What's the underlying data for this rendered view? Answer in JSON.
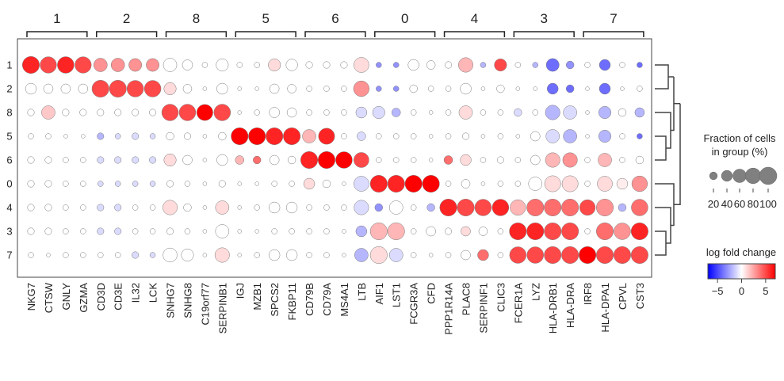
{
  "chart_data": {
    "type": "dotplot",
    "title": "",
    "xlabel": "",
    "ylabel": "",
    "rows": [
      "1",
      "2",
      "8",
      "5",
      "6",
      "0",
      "4",
      "3",
      "7"
    ],
    "genes": [
      "NKG7",
      "CTSW",
      "GNLY",
      "GZMA",
      "CD3D",
      "CD3E",
      "IL32",
      "LCK",
      "SNHG7",
      "SNHG8",
      "C19orf77",
      "SERPINB1",
      "IGJ",
      "MZB1",
      "SPCS2",
      "FKBP11",
      "CD79B",
      "CD79A",
      "MS4A1",
      "LTB",
      "AIF1",
      "LST1",
      "FCGR3A",
      "CFD",
      "PPP1R14A",
      "PLAC8",
      "SERPINF1",
      "CLIC3",
      "FCER1A",
      "LYZ",
      "HLA-DRB1",
      "HLA-DRA",
      "IRF8",
      "HLA-DPA1",
      "CPVL",
      "CST3"
    ],
    "groups": [
      {
        "label": "1",
        "start": 0,
        "end": 3
      },
      {
        "label": "2",
        "start": 4,
        "end": 7
      },
      {
        "label": "8",
        "start": 8,
        "end": 11
      },
      {
        "label": "5",
        "start": 12,
        "end": 15
      },
      {
        "label": "6",
        "start": 16,
        "end": 19
      },
      {
        "label": "0",
        "start": 20,
        "end": 23
      },
      {
        "label": "4",
        "start": 24,
        "end": 27
      },
      {
        "label": "3",
        "start": 28,
        "end": 31
      },
      {
        "label": "7",
        "start": 32,
        "end": 35
      }
    ],
    "fraction_pct": [
      [
        95,
        88,
        90,
        88,
        60,
        60,
        55,
        55,
        60,
        35,
        10,
        50,
        10,
        10,
        50,
        45,
        15,
        15,
        15,
        75,
        10,
        10,
        40,
        25,
        15,
        70,
        10,
        50,
        10,
        10,
        55,
        20,
        10,
        40,
        10,
        10
      ],
      [
        40,
        30,
        30,
        30,
        95,
        95,
        90,
        90,
        50,
        25,
        5,
        40,
        5,
        5,
        30,
        25,
        10,
        10,
        10,
        80,
        10,
        10,
        20,
        10,
        10,
        40,
        5,
        20,
        5,
        5,
        40,
        20,
        5,
        40,
        5,
        10
      ],
      [
        15,
        60,
        15,
        15,
        15,
        15,
        15,
        15,
        90,
        90,
        85,
        90,
        5,
        10,
        35,
        30,
        10,
        10,
        10,
        40,
        50,
        25,
        10,
        5,
        10,
        60,
        10,
        10,
        20,
        10,
        70,
        60,
        5,
        50,
        20,
        30
      ],
      [
        10,
        10,
        5,
        5,
        15,
        10,
        15,
        10,
        20,
        15,
        5,
        20,
        95,
        95,
        95,
        95,
        60,
        85,
        10,
        25,
        10,
        10,
        10,
        5,
        10,
        15,
        5,
        10,
        5,
        30,
        60,
        60,
        5,
        50,
        10,
        10
      ],
      [
        15,
        15,
        10,
        10,
        15,
        15,
        15,
        15,
        50,
        30,
        5,
        40,
        25,
        20,
        30,
        20,
        95,
        95,
        90,
        75,
        10,
        10,
        10,
        5,
        25,
        40,
        10,
        15,
        10,
        30,
        70,
        70,
        10,
        60,
        10,
        20
      ],
      [
        15,
        15,
        10,
        10,
        10,
        10,
        10,
        10,
        15,
        10,
        5,
        15,
        5,
        5,
        10,
        10,
        40,
        20,
        5,
        75,
        95,
        95,
        95,
        95,
        10,
        25,
        5,
        10,
        10,
        60,
        85,
        85,
        10,
        75,
        40,
        80
      ],
      [
        15,
        15,
        10,
        10,
        15,
        15,
        10,
        10,
        70,
        20,
        5,
        60,
        5,
        10,
        40,
        40,
        10,
        10,
        10,
        70,
        20,
        60,
        10,
        20,
        95,
        95,
        90,
        90,
        80,
        95,
        95,
        95,
        80,
        95,
        20,
        90
      ],
      [
        15,
        15,
        10,
        10,
        15,
        15,
        10,
        10,
        15,
        10,
        5,
        60,
        5,
        5,
        10,
        10,
        10,
        10,
        5,
        40,
        95,
        95,
        10,
        30,
        15,
        30,
        25,
        10,
        95,
        95,
        95,
        95,
        10,
        95,
        90,
        95
      ],
      [
        10,
        5,
        10,
        10,
        10,
        10,
        15,
        10,
        65,
        50,
        5,
        70,
        5,
        10,
        40,
        40,
        10,
        10,
        5,
        60,
        95,
        60,
        10,
        5,
        10,
        30,
        40,
        10,
        90,
        90,
        95,
        95,
        95,
        95,
        95,
        95
      ]
    ],
    "log_fold_change": [
      [
        6,
        5,
        6,
        5,
        3,
        3,
        3,
        3,
        0,
        0,
        0,
        0,
        0,
        0,
        1,
        0,
        0,
        0,
        0,
        1,
        -3,
        -3,
        0,
        0,
        0,
        2,
        -2,
        5,
        0,
        -2,
        -4,
        -3,
        0,
        -4,
        0,
        -4
      ],
      [
        0,
        0,
        0,
        0,
        5,
        5,
        5,
        5,
        1,
        0,
        0,
        0,
        0,
        0,
        0,
        0,
        0,
        0,
        0,
        3,
        -3,
        -3,
        0,
        0,
        0,
        0,
        0,
        0,
        0,
        0,
        -4,
        -4,
        0,
        -4,
        0,
        0
      ],
      [
        0,
        1.5,
        0,
        0,
        0,
        0,
        0,
        0,
        5,
        5,
        7,
        5,
        0,
        0,
        0,
        0,
        0,
        0,
        0,
        -1,
        -1,
        -2,
        0,
        0,
        0,
        1,
        0,
        0,
        -1,
        0,
        -2,
        -1,
        0,
        -2,
        0,
        -2
      ],
      [
        0,
        0,
        0,
        0,
        -2,
        -1,
        -1,
        -1,
        0,
        0,
        0,
        0,
        7,
        7,
        6,
        6,
        2,
        6,
        0,
        -1,
        0,
        0,
        0,
        0,
        0,
        0,
        0,
        0,
        0,
        0,
        -1,
        -2,
        0,
        -2,
        0,
        -4
      ],
      [
        0,
        0,
        0,
        0,
        -1,
        -1,
        -1,
        -1,
        1,
        0,
        0,
        0,
        2,
        4,
        0,
        0,
        6,
        7,
        7,
        5,
        0,
        0,
        0,
        0,
        4,
        1,
        0,
        0,
        0,
        0,
        2,
        3,
        0,
        2,
        0,
        0
      ],
      [
        0,
        0,
        0,
        0,
        -1,
        -1,
        -1,
        -1,
        0,
        0,
        0,
        0,
        0,
        0,
        0,
        0,
        1,
        0,
        0,
        -1,
        6,
        6,
        7,
        7,
        0,
        0,
        0,
        0,
        0,
        0,
        1,
        1,
        0,
        1,
        0.5,
        3
      ],
      [
        0,
        0,
        0,
        0,
        -1,
        -1,
        0,
        0,
        1,
        0,
        0,
        1,
        0,
        0,
        0,
        0,
        0,
        0,
        0,
        -1,
        -3,
        0,
        0,
        -2,
        6,
        5,
        5,
        6,
        2,
        4,
        4,
        4,
        5,
        3,
        -2,
        4
      ],
      [
        0,
        0,
        0,
        0,
        -1,
        -1,
        0,
        0,
        0,
        0,
        0,
        0,
        0,
        0,
        0,
        0,
        0,
        0,
        0,
        -2,
        2,
        2,
        0,
        0,
        0,
        1,
        0,
        0,
        6,
        6,
        5,
        5,
        0,
        4,
        3,
        6
      ],
      [
        0,
        0,
        0,
        0,
        0,
        0,
        -1,
        -1,
        0,
        0,
        0,
        1,
        0,
        0,
        0,
        0,
        0,
        0,
        0,
        -2,
        1,
        -1,
        0,
        0,
        0,
        0,
        4,
        0,
        5,
        5,
        5,
        5,
        7,
        5,
        5,
        5
      ]
    ],
    "dendrogram_order": [
      "1",
      "2",
      "8",
      "5",
      "6",
      "0",
      "4",
      "3",
      "7"
    ],
    "size_legend": {
      "title_line1": "Fraction of cells",
      "title_line2": "in group (%)",
      "ticks": [
        20,
        40,
        60,
        80,
        100
      ],
      "tick_labels": [
        "20",
        "40",
        "60",
        "80",
        "100"
      ]
    },
    "color_legend": {
      "title": "log fold change",
      "min": -7,
      "max": 7,
      "ticks": [
        -5,
        0,
        5
      ],
      "tick_labels": [
        "−5",
        "0",
        "5"
      ],
      "colormap": "bwr",
      "colors": {
        "low": "#0000ff",
        "mid": "#ffffff",
        "high": "#ff0000"
      }
    },
    "grid": false,
    "legend_position": "right"
  }
}
